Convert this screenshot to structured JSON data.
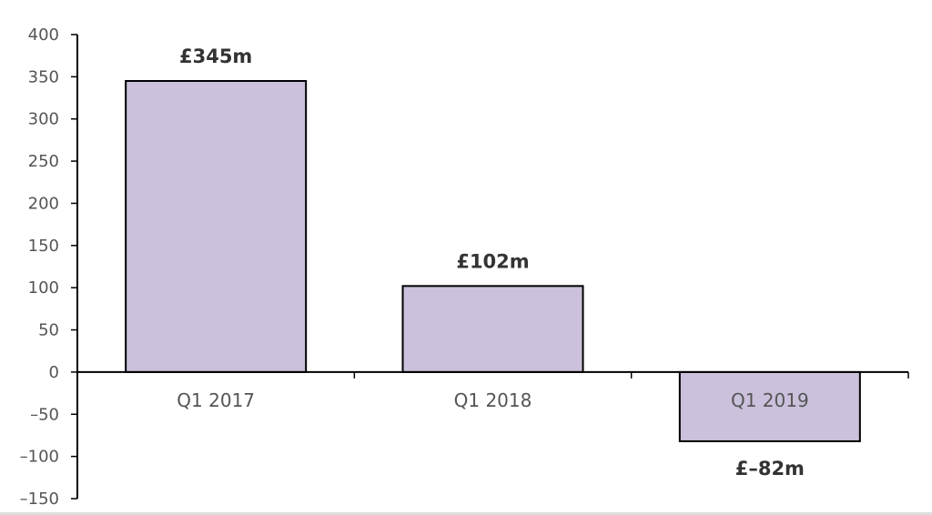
{
  "chart_data": {
    "type": "bar",
    "categories": [
      "Q1 2017",
      "Q1 2018",
      "Q1 2019"
    ],
    "values": [
      345,
      102,
      -82
    ],
    "data_labels": [
      "£345m",
      "£102m",
      "£–82m"
    ],
    "ylim": [
      -150,
      400
    ],
    "yticks": [
      400,
      350,
      300,
      250,
      200,
      150,
      100,
      50,
      0,
      -50,
      -100,
      -150
    ],
    "ytick_labels": [
      "400",
      "350",
      "300",
      "250",
      "200",
      "150",
      "100",
      "50",
      "0",
      "–50",
      "–100",
      "–150"
    ],
    "title": "",
    "xlabel": "",
    "ylabel": "",
    "bar_color": "#cbc1dc",
    "bar_edge_color": "#000000",
    "grid": false,
    "legend": "none"
  }
}
